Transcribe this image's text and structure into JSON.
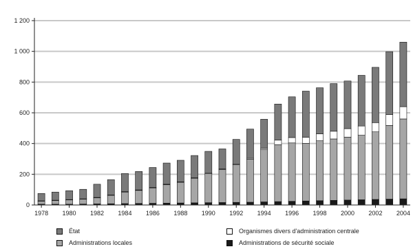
{
  "chart_data": {
    "type": "bar",
    "stacked": true,
    "title": "",
    "xlabel": "",
    "ylabel": "",
    "ylim": [
      0,
      1200
    ],
    "yticks": [
      "0",
      "200",
      "400",
      "600",
      "800",
      "1 000",
      "1 200"
    ],
    "ytick_values": [
      0,
      200,
      400,
      600,
      800,
      1000,
      1200
    ],
    "grid": true,
    "legend_position": "bottom",
    "categories": [
      "1978",
      "1979",
      "1980",
      "1981",
      "1982",
      "1983",
      "1984",
      "1985",
      "1986",
      "1987",
      "1988",
      "1989",
      "1990",
      "1991",
      "1992",
      "1993",
      "1994",
      "1995",
      "1996",
      "1997",
      "1998",
      "1999",
      "2000",
      "2001",
      "2002",
      "2003",
      "2004"
    ],
    "xtick_labels": [
      "1978",
      "",
      "1980",
      "",
      "1982",
      "",
      "1984",
      "",
      "1986",
      "",
      "1988",
      "",
      "1990",
      "",
      "1992",
      "",
      "1994",
      "",
      "1996",
      "",
      "1998",
      "",
      "2000",
      "",
      "2002",
      "",
      "2004"
    ],
    "series": [
      {
        "name": "Administrations de sécurité sociale",
        "color": "#1a1a1a",
        "values": [
          5,
          5,
          5,
          6,
          7,
          8,
          9,
          10,
          11,
          12,
          13,
          14,
          15,
          16,
          17,
          18,
          20,
          22,
          24,
          26,
          28,
          30,
          32,
          34,
          36,
          38,
          40
        ]
      },
      {
        "name": "Administrations locales",
        "color": "#a6a6a6",
        "values": [
          20,
          24,
          28,
          32,
          40,
          55,
          75,
          85,
          100,
          120,
          135,
          160,
          190,
          215,
          245,
          280,
          340,
          370,
          380,
          375,
          390,
          400,
          410,
          420,
          440,
          480,
          520
        ]
      },
      {
        "name": "Organismes divers d'administration centrale",
        "color": "#ffffff",
        "values": [
          2,
          2,
          2,
          2,
          2,
          2,
          3,
          3,
          3,
          3,
          3,
          3,
          4,
          4,
          5,
          6,
          8,
          30,
          35,
          40,
          45,
          50,
          55,
          60,
          60,
          70,
          80
        ]
      },
      {
        "name": "État",
        "color": "#7a7a7a",
        "values": [
          48,
          53,
          58,
          62,
          86,
          100,
          118,
          120,
          130,
          138,
          140,
          145,
          140,
          130,
          160,
          190,
          190,
          235,
          265,
          300,
          300,
          310,
          310,
          330,
          360,
          410,
          420
        ]
      }
    ]
  }
}
